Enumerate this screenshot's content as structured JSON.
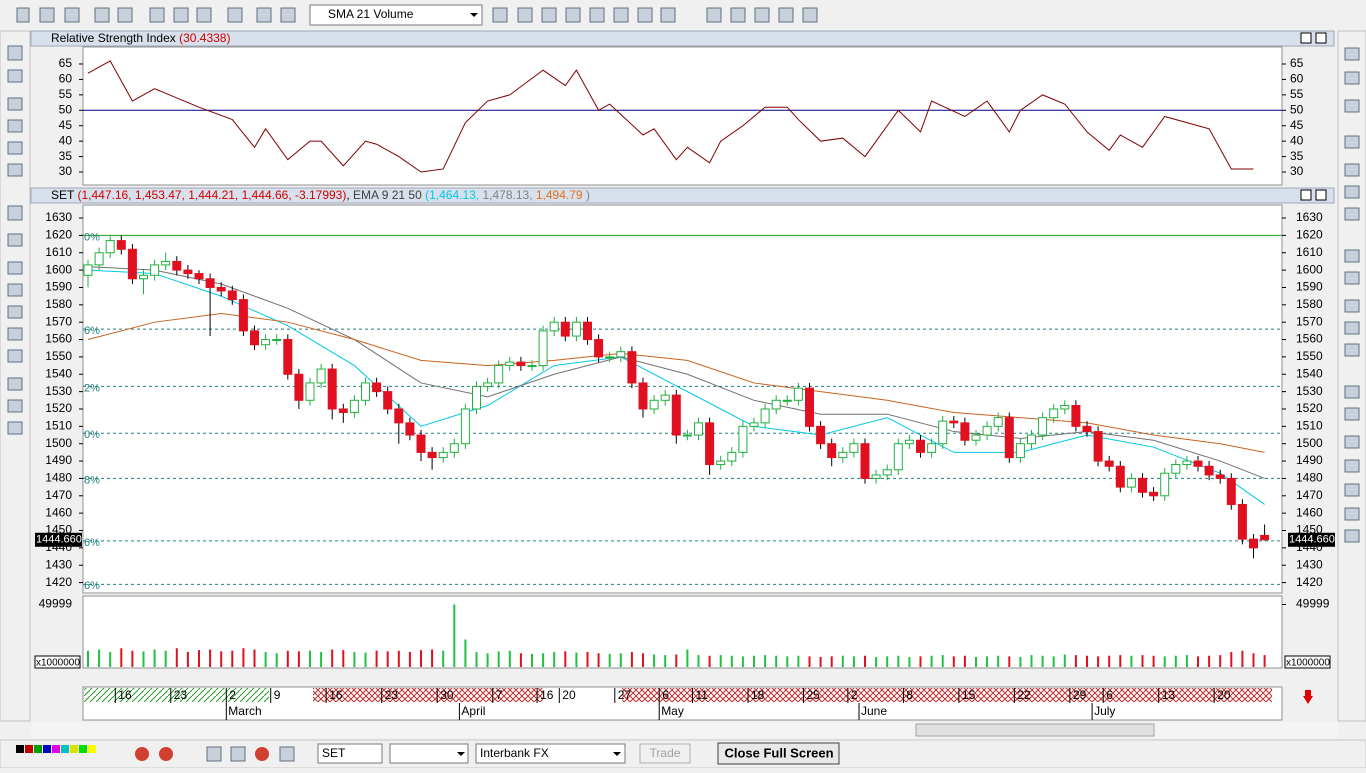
{
  "toolbar": {
    "indicator_combo": "SMA 21 Volume"
  },
  "rsi_panel": {
    "title": "Relative Strength Index",
    "value_text": "(30.4338)",
    "ylim": [
      25.8,
      70.5
    ],
    "yticks": [
      30,
      35,
      40,
      45,
      50,
      55,
      60,
      65
    ],
    "reference": 50,
    "line_color": "#800000",
    "index": [
      0,
      2,
      4,
      6,
      8,
      10,
      13,
      15,
      16,
      18,
      20,
      21,
      23,
      25,
      26,
      28,
      30,
      32,
      34,
      36,
      38,
      41,
      43,
      44,
      46,
      47,
      50,
      51,
      53,
      54,
      56,
      57,
      59,
      61,
      63,
      64,
      66,
      68,
      70,
      71,
      73,
      75,
      76,
      79,
      81,
      83,
      84,
      86,
      88,
      90,
      92,
      93,
      95,
      97,
      99,
      101,
      103,
      105
    ],
    "values": [
      62,
      66,
      53,
      57,
      54,
      51,
      47,
      38,
      44,
      34,
      40,
      40,
      32,
      40,
      39,
      35,
      30,
      31,
      46,
      53,
      55,
      63,
      58,
      63,
      50,
      52,
      42,
      44,
      34,
      38,
      33,
      40,
      45,
      51,
      51,
      47,
      40,
      41,
      35,
      40,
      50,
      43,
      53,
      48,
      53,
      43,
      50,
      55,
      52,
      43,
      37,
      42,
      38,
      48,
      46,
      44,
      31,
      31
    ]
  },
  "price_panel": {
    "symbol": "SET",
    "ohlc_text": "(1,447.16, 1,453.47, 1,444.21, 1,444.66, -3.17993)",
    "ema_title": "EMA 9 21 50",
    "ema_texts": [
      {
        "text": "(1,464.13,",
        "color": "#00c8e6"
      },
      {
        "text": "1,478.13,",
        "color": "#808080"
      },
      {
        "text": "1,494.79",
        "color": "#e07020"
      },
      {
        "text": ")",
        "color": "#808080"
      }
    ],
    "ylim": [
      1414,
      1637.5
    ],
    "yticks": [
      1420,
      1430,
      1440,
      1450,
      1460,
      1470,
      1480,
      1490,
      1500,
      1510,
      1520,
      1530,
      1540,
      1550,
      1560,
      1570,
      1580,
      1590,
      1600,
      1610,
      1620,
      1630
    ],
    "last": {
      "value": 1444.66,
      "label": "1444.660"
    },
    "fib": [
      {
        "value": 1620,
        "label": "0%"
      },
      {
        "value": 1566,
        "label": "6%"
      },
      {
        "value": 1533,
        "label": "2%"
      },
      {
        "value": 1506,
        "label": "0%"
      },
      {
        "value": 1480,
        "label": "8%"
      },
      {
        "value": 1444,
        "label": "6%"
      },
      {
        "value": 1419,
        "label": "6%"
      }
    ],
    "ema_lines": {
      "index": [
        0,
        6,
        12,
        18,
        24,
        30,
        36,
        42,
        48,
        54,
        60,
        66,
        72,
        78,
        84,
        90,
        96,
        102,
        106
      ],
      "series": [
        {
          "color": "#00c8e6",
          "values": [
            1600,
            1598,
            1585,
            1568,
            1545,
            1510,
            1522,
            1545,
            1550,
            1530,
            1510,
            1505,
            1515,
            1495,
            1495,
            1505,
            1498,
            1483,
            1465
          ]
        },
        {
          "color": "#707070",
          "values": [
            1602,
            1600,
            1592,
            1578,
            1560,
            1535,
            1527,
            1540,
            1550,
            1540,
            1525,
            1517,
            1517,
            1507,
            1503,
            1507,
            1502,
            1490,
            1480
          ]
        },
        {
          "color": "#c8641e",
          "values": [
            1560,
            1570,
            1575,
            1570,
            1560,
            1548,
            1545,
            1548,
            1552,
            1548,
            1535,
            1530,
            1525,
            1518,
            1515,
            1512,
            1505,
            1500,
            1495
          ]
        }
      ]
    },
    "candles": [
      [
        1597,
        1606,
        1590,
        1603
      ],
      [
        1603,
        1613,
        1600,
        1610
      ],
      [
        1610,
        1620,
        1607,
        1617
      ],
      [
        1617,
        1620,
        1609,
        1612
      ],
      [
        1612,
        1615,
        1592,
        1595
      ],
      [
        1595,
        1600,
        1586,
        1597
      ],
      [
        1597,
        1606,
        1594,
        1603
      ],
      [
        1603,
        1610,
        1600,
        1605
      ],
      [
        1605,
        1608,
        1597,
        1600
      ],
      [
        1600,
        1603,
        1595,
        1598
      ],
      [
        1598,
        1600,
        1592,
        1595
      ],
      [
        1595,
        1598,
        1562,
        1590
      ],
      [
        1590,
        1593,
        1585,
        1588
      ],
      [
        1588,
        1591,
        1580,
        1583
      ],
      [
        1583,
        1586,
        1562,
        1565
      ],
      [
        1565,
        1568,
        1554,
        1557
      ],
      [
        1557,
        1563,
        1554,
        1560
      ],
      [
        1560,
        1563,
        1557,
        1560
      ],
      [
        1560,
        1563,
        1537,
        1540
      ],
      [
        1540,
        1543,
        1520,
        1525
      ],
      [
        1525,
        1538,
        1522,
        1535
      ],
      [
        1535,
        1546,
        1532,
        1543
      ],
      [
        1543,
        1546,
        1514,
        1520
      ],
      [
        1520,
        1523,
        1512,
        1518
      ],
      [
        1518,
        1528,
        1515,
        1525
      ],
      [
        1525,
        1538,
        1522,
        1535
      ],
      [
        1535,
        1538,
        1527,
        1530
      ],
      [
        1530,
        1533,
        1517,
        1520
      ],
      [
        1520,
        1523,
        1500,
        1512
      ],
      [
        1512,
        1515,
        1502,
        1505
      ],
      [
        1505,
        1508,
        1490,
        1495
      ],
      [
        1495,
        1498,
        1485,
        1492
      ],
      [
        1492,
        1498,
        1489,
        1495
      ],
      [
        1495,
        1503,
        1492,
        1500
      ],
      [
        1500,
        1523,
        1497,
        1520
      ],
      [
        1520,
        1536,
        1517,
        1533
      ],
      [
        1533,
        1538,
        1530,
        1535
      ],
      [
        1535,
        1548,
        1532,
        1545
      ],
      [
        1545,
        1550,
        1542,
        1547
      ],
      [
        1547,
        1550,
        1542,
        1545
      ],
      [
        1545,
        1548,
        1542,
        1545
      ],
      [
        1545,
        1568,
        1542,
        1565
      ],
      [
        1565,
        1573,
        1562,
        1570
      ],
      [
        1570,
        1573,
        1559,
        1562
      ],
      [
        1562,
        1573,
        1559,
        1570
      ],
      [
        1570,
        1573,
        1557,
        1560
      ],
      [
        1560,
        1563,
        1547,
        1550
      ],
      [
        1550,
        1553,
        1547,
        1550
      ],
      [
        1550,
        1556,
        1547,
        1553
      ],
      [
        1553,
        1556,
        1532,
        1535
      ],
      [
        1535,
        1538,
        1515,
        1520
      ],
      [
        1520,
        1528,
        1517,
        1525
      ],
      [
        1525,
        1531,
        1522,
        1528
      ],
      [
        1528,
        1531,
        1500,
        1505
      ],
      [
        1505,
        1508,
        1502,
        1505
      ],
      [
        1505,
        1515,
        1502,
        1512
      ],
      [
        1512,
        1515,
        1482,
        1488
      ],
      [
        1488,
        1493,
        1485,
        1490
      ],
      [
        1490,
        1498,
        1487,
        1495
      ],
      [
        1495,
        1513,
        1492,
        1510
      ],
      [
        1510,
        1515,
        1507,
        1512
      ],
      [
        1512,
        1523,
        1509,
        1520
      ],
      [
        1520,
        1528,
        1517,
        1525
      ],
      [
        1525,
        1528,
        1522,
        1525
      ],
      [
        1525,
        1535,
        1522,
        1532
      ],
      [
        1532,
        1535,
        1507,
        1510
      ],
      [
        1510,
        1513,
        1497,
        1500
      ],
      [
        1500,
        1503,
        1487,
        1492
      ],
      [
        1492,
        1498,
        1489,
        1495
      ],
      [
        1495,
        1503,
        1492,
        1500
      ],
      [
        1500,
        1503,
        1477,
        1480
      ],
      [
        1480,
        1485,
        1477,
        1482
      ],
      [
        1482,
        1488,
        1479,
        1485
      ],
      [
        1485,
        1503,
        1482,
        1500
      ],
      [
        1500,
        1505,
        1497,
        1502
      ],
      [
        1502,
        1505,
        1492,
        1495
      ],
      [
        1495,
        1503,
        1492,
        1500
      ],
      [
        1500,
        1516,
        1497,
        1513
      ],
      [
        1513,
        1516,
        1509,
        1512
      ],
      [
        1512,
        1515,
        1499,
        1502
      ],
      [
        1502,
        1508,
        1499,
        1505
      ],
      [
        1505,
        1513,
        1502,
        1510
      ],
      [
        1510,
        1518,
        1507,
        1515
      ],
      [
        1515,
        1518,
        1489,
        1492
      ],
      [
        1492,
        1503,
        1489,
        1500
      ],
      [
        1500,
        1508,
        1497,
        1505
      ],
      [
        1505,
        1518,
        1502,
        1515
      ],
      [
        1515,
        1523,
        1512,
        1520
      ],
      [
        1520,
        1525,
        1517,
        1522
      ],
      [
        1522,
        1525,
        1507,
        1510
      ],
      [
        1510,
        1513,
        1504,
        1507
      ],
      [
        1507,
        1510,
        1487,
        1490
      ],
      [
        1490,
        1493,
        1484,
        1487
      ],
      [
        1487,
        1490,
        1472,
        1475
      ],
      [
        1475,
        1483,
        1472,
        1480
      ],
      [
        1480,
        1483,
        1469,
        1472
      ],
      [
        1472,
        1475,
        1467,
        1470
      ],
      [
        1470,
        1486,
        1467,
        1483
      ],
      [
        1483,
        1491,
        1480,
        1488
      ],
      [
        1488,
        1493,
        1485,
        1490
      ],
      [
        1490,
        1493,
        1484,
        1487
      ],
      [
        1487,
        1490,
        1479,
        1482
      ],
      [
        1482,
        1485,
        1477,
        1480
      ],
      [
        1480,
        1483,
        1462,
        1465
      ],
      [
        1465,
        1468,
        1442,
        1445
      ],
      [
        1445,
        1448,
        1434,
        1440
      ],
      [
        1447.16,
        1453.47,
        1444.21,
        1444.66
      ]
    ]
  },
  "volume_panel": {
    "ylim": [
      0,
      56000
    ],
    "yticks": [
      49999
    ],
    "unit": "x1000000",
    "values": [
      13000,
      14000,
      12000,
      15000,
      13000,
      12500,
      14000,
      13000,
      15000,
      12000,
      13500,
      14000,
      12500,
      13000,
      15000,
      14000,
      12000,
      11000,
      13000,
      12500,
      13000,
      12000,
      14000,
      13500,
      12000,
      11500,
      13000,
      12500,
      13000,
      12000,
      13500,
      14000,
      13000,
      49999,
      22000,
      12000,
      11000,
      12500,
      13000,
      11000,
      10500,
      11000,
      12000,
      12500,
      11500,
      12000,
      11000,
      10500,
      11000,
      12000,
      11000,
      10000,
      9500,
      10000,
      14000,
      9500,
      9000,
      9500,
      9000,
      8500,
      9000,
      9500,
      9000,
      8500,
      9000,
      8500,
      8000,
      8500,
      9000,
      8500,
      9000,
      8000,
      8500,
      9000,
      8000,
      8500,
      9000,
      9500,
      8500,
      9000,
      8000,
      8500,
      9000,
      8500,
      8000,
      9500,
      9000,
      8500,
      10000,
      9500,
      9000,
      8500,
      9000,
      9500,
      9000,
      9500,
      9000,
      8500,
      9000,
      9500,
      8500,
      9000,
      9500,
      12000,
      13000,
      11000,
      9500
    ]
  },
  "date_axis": {
    "days": [
      {
        "label": "16",
        "index": 3
      },
      {
        "label": "23",
        "index": 8
      },
      {
        "label": "2",
        "index": 13
      },
      {
        "label": "9",
        "index": 17
      },
      {
        "label": "16",
        "index": 22
      },
      {
        "label": "23",
        "index": 27
      },
      {
        "label": "30",
        "index": 32
      },
      {
        "label": "7",
        "index": 37
      },
      {
        "label": "16",
        "index": 41
      },
      {
        "label": "20",
        "index": 43
      },
      {
        "label": "27",
        "index": 48
      },
      {
        "label": "6",
        "index": 52
      },
      {
        "label": "11",
        "index": 55
      },
      {
        "label": "18",
        "index": 60
      },
      {
        "label": "25",
        "index": 65
      },
      {
        "label": "2",
        "index": 69
      },
      {
        "label": "8",
        "index": 74
      },
      {
        "label": "15",
        "index": 79
      },
      {
        "label": "22",
        "index": 84
      },
      {
        "label": "29",
        "index": 89
      },
      {
        "label": "6",
        "index": 92
      },
      {
        "label": "13",
        "index": 97
      },
      {
        "label": "20",
        "index": 102
      }
    ],
    "months": [
      {
        "label": "March",
        "index": 13
      },
      {
        "label": "April",
        "index": 34
      },
      {
        "label": "May",
        "index": 52
      },
      {
        "label": "June",
        "index": 70
      },
      {
        "label": "July",
        "index": 91
      }
    ]
  },
  "statusbar": {
    "symbol_box": "SET",
    "broker": "Interbank FX",
    "trade_button": "Trade",
    "close_button": "Close Full Screen"
  }
}
